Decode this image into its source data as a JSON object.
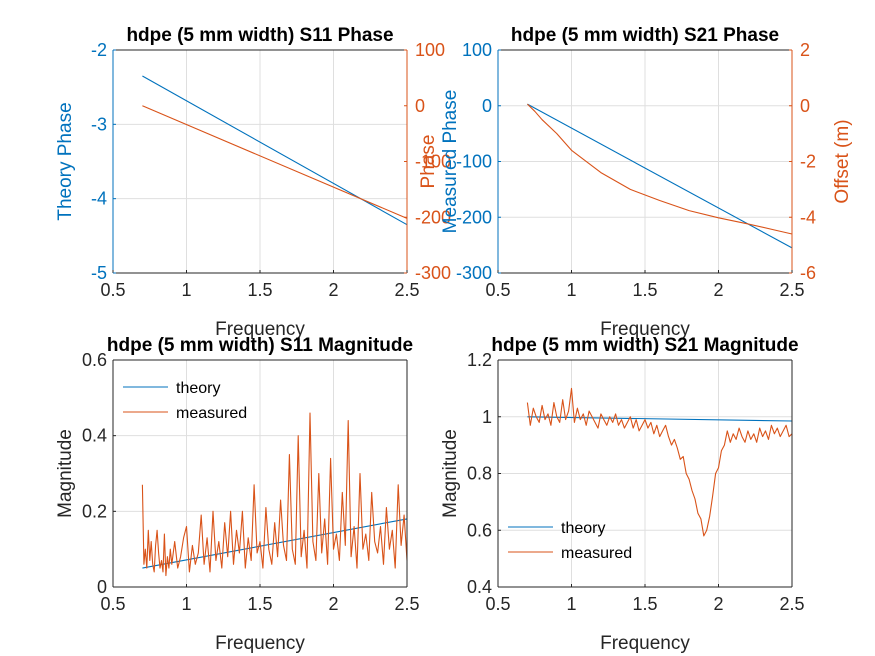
{
  "colors": {
    "blue": "#0072BD",
    "orange": "#D95319",
    "axis": "#262626",
    "grid": "#DFDFDF"
  },
  "chart_data": [
    {
      "id": "s11-phase",
      "type": "line",
      "title": "hdpe (5 mm width) S11 Phase",
      "xlabel": "Frequency",
      "ylabel_left": "Theory Phase",
      "ylabel_right": "Phase",
      "xlim": [
        0.5,
        2.5
      ],
      "ylim_left": [
        -5,
        -2
      ],
      "ylim_right": [
        -300,
        100
      ],
      "xticks": [
        "0.5",
        "1",
        "1.5",
        "2",
        "2.5"
      ],
      "yticks_left": [
        "-5",
        "-4",
        "-3",
        "-2"
      ],
      "yticks_right": [
        "-300",
        "-200",
        "-100",
        "0",
        "100"
      ],
      "grid": true,
      "series": [
        {
          "axis": "left",
          "color": "blue",
          "x": [
            0.7,
            2.5
          ],
          "y": [
            -2.35,
            -4.35
          ]
        },
        {
          "axis": "right",
          "color": "orange",
          "x": [
            0.7,
            2.5
          ],
          "y": [
            0,
            -202
          ]
        }
      ]
    },
    {
      "id": "s21-phase",
      "type": "line",
      "title": "hdpe (5 mm width) S21 Phase",
      "xlabel": "Frequency",
      "ylabel_left": "Measured Phase",
      "ylabel_right": "Offset (m)",
      "xlim": [
        0.5,
        2.5
      ],
      "ylim_left": [
        -300,
        100
      ],
      "ylim_right": [
        -6,
        2
      ],
      "xticks": [
        "0.5",
        "1",
        "1.5",
        "2",
        "2.5"
      ],
      "yticks_left": [
        "-300",
        "-200",
        "-100",
        "0",
        "100"
      ],
      "yticks_right": [
        "-6",
        "-4",
        "-2",
        "0",
        "2"
      ],
      "grid": true,
      "series": [
        {
          "axis": "left",
          "color": "blue",
          "x": [
            0.7,
            2.5
          ],
          "y": [
            3,
            -255
          ]
        },
        {
          "axis": "left",
          "color": "orange",
          "x": [
            0.7,
            0.75,
            0.8,
            0.9,
            1.0,
            1.2,
            1.4,
            1.6,
            1.8,
            2.0,
            2.2,
            2.4,
            2.5
          ],
          "y": [
            3,
            -10,
            -25,
            -50,
            -80,
            -120,
            -150,
            -170,
            -188,
            -201,
            -212,
            -224,
            -230
          ]
        }
      ]
    },
    {
      "id": "s11-magnitude",
      "type": "line",
      "title": "hdpe (5 mm width) S11 Magnitude",
      "xlabel": "Frequency",
      "ylabel": "Magnitude",
      "xlim": [
        0.5,
        2.5
      ],
      "ylim": [
        0,
        0.6
      ],
      "xticks": [
        "0.5",
        "1",
        "1.5",
        "2",
        "2.5"
      ],
      "yticks": [
        "0",
        "0.2",
        "0.4",
        "0.6"
      ],
      "grid": true,
      "legend": [
        "theory",
        "measured"
      ],
      "legend_position": "top-left",
      "series": [
        {
          "name": "theory",
          "color": "blue",
          "x": [
            0.7,
            2.5
          ],
          "y": [
            0.05,
            0.18
          ]
        },
        {
          "name": "measured",
          "color": "orange",
          "x": [
            0.7,
            0.71,
            0.72,
            0.73,
            0.74,
            0.75,
            0.76,
            0.77,
            0.78,
            0.79,
            0.8,
            0.81,
            0.82,
            0.83,
            0.84,
            0.85,
            0.86,
            0.87,
            0.88,
            0.89,
            0.9,
            0.92,
            0.94,
            0.96,
            0.98,
            1.0,
            1.02,
            1.04,
            1.06,
            1.08,
            1.1,
            1.12,
            1.14,
            1.16,
            1.18,
            1.2,
            1.22,
            1.24,
            1.26,
            1.28,
            1.3,
            1.32,
            1.34,
            1.36,
            1.38,
            1.4,
            1.42,
            1.44,
            1.46,
            1.48,
            1.5,
            1.52,
            1.54,
            1.56,
            1.58,
            1.6,
            1.62,
            1.64,
            1.66,
            1.68,
            1.7,
            1.72,
            1.74,
            1.76,
            1.78,
            1.8,
            1.82,
            1.84,
            1.86,
            1.88,
            1.9,
            1.92,
            1.94,
            1.96,
            1.98,
            2.0,
            2.02,
            2.04,
            2.06,
            2.08,
            2.1,
            2.12,
            2.14,
            2.16,
            2.18,
            2.2,
            2.22,
            2.24,
            2.26,
            2.28,
            2.3,
            2.32,
            2.34,
            2.36,
            2.38,
            2.4,
            2.42,
            2.44,
            2.46,
            2.48,
            2.5
          ],
          "y": [
            0.27,
            0.06,
            0.1,
            0.05,
            0.15,
            0.07,
            0.12,
            0.06,
            0.04,
            0.11,
            0.15,
            0.09,
            0.05,
            0.07,
            0.04,
            0.14,
            0.03,
            0.08,
            0.05,
            0.1,
            0.06,
            0.12,
            0.05,
            0.08,
            0.13,
            0.16,
            0.04,
            0.11,
            0.06,
            0.09,
            0.19,
            0.06,
            0.13,
            0.04,
            0.2,
            0.07,
            0.12,
            0.05,
            0.17,
            0.08,
            0.2,
            0.06,
            0.15,
            0.09,
            0.2,
            0.05,
            0.13,
            0.07,
            0.27,
            0.09,
            0.12,
            0.05,
            0.21,
            0.1,
            0.06,
            0.17,
            0.08,
            0.23,
            0.11,
            0.07,
            0.35,
            0.1,
            0.06,
            0.4,
            0.08,
            0.15,
            0.05,
            0.46,
            0.12,
            0.07,
            0.3,
            0.09,
            0.18,
            0.06,
            0.34,
            0.1,
            0.14,
            0.07,
            0.25,
            0.11,
            0.44,
            0.08,
            0.16,
            0.05,
            0.3,
            0.1,
            0.14,
            0.07,
            0.25,
            0.12,
            0.09,
            0.16,
            0.06,
            0.21,
            0.1,
            0.15,
            0.05,
            0.27,
            0.11,
            0.19,
            0.07
          ]
        }
      ]
    },
    {
      "id": "s21-magnitude",
      "type": "line",
      "title": "hdpe (5 mm width) S21 Magnitude",
      "xlabel": "Frequency",
      "ylabel": "Magnitude",
      "xlim": [
        0.5,
        2.5
      ],
      "ylim": [
        0.4,
        1.2
      ],
      "xticks": [
        "0.5",
        "1",
        "1.5",
        "2",
        "2.5"
      ],
      "yticks": [
        "0.4",
        "0.6",
        "0.8",
        "1",
        "1.2"
      ],
      "grid": true,
      "legend": [
        "theory",
        "measured"
      ],
      "legend_position": "bottom-left",
      "series": [
        {
          "name": "theory",
          "color": "blue",
          "x": [
            0.7,
            2.5
          ],
          "y": [
            1.0,
            0.985
          ]
        },
        {
          "name": "measured",
          "color": "orange",
          "x": [
            0.7,
            0.72,
            0.74,
            0.76,
            0.78,
            0.8,
            0.82,
            0.84,
            0.86,
            0.88,
            0.9,
            0.92,
            0.94,
            0.96,
            0.98,
            1.0,
            1.02,
            1.04,
            1.06,
            1.08,
            1.1,
            1.12,
            1.14,
            1.16,
            1.18,
            1.2,
            1.22,
            1.24,
            1.26,
            1.28,
            1.3,
            1.32,
            1.34,
            1.36,
            1.38,
            1.4,
            1.42,
            1.44,
            1.46,
            1.48,
            1.5,
            1.52,
            1.54,
            1.56,
            1.58,
            1.6,
            1.62,
            1.64,
            1.66,
            1.68,
            1.7,
            1.72,
            1.74,
            1.76,
            1.78,
            1.8,
            1.82,
            1.84,
            1.86,
            1.88,
            1.9,
            1.92,
            1.94,
            1.96,
            1.98,
            2.0,
            2.02,
            2.04,
            2.06,
            2.08,
            2.1,
            2.12,
            2.14,
            2.16,
            2.18,
            2.2,
            2.22,
            2.24,
            2.26,
            2.28,
            2.3,
            2.32,
            2.34,
            2.36,
            2.38,
            2.4,
            2.42,
            2.44,
            2.46,
            2.48,
            2.5
          ],
          "y": [
            1.05,
            0.97,
            1.03,
            1.0,
            0.98,
            1.04,
            0.99,
            1.01,
            0.97,
            1.05,
            1.0,
            0.98,
            1.06,
            0.99,
            1.02,
            1.1,
            0.98,
            1.03,
            0.99,
            1.01,
            0.97,
            1.02,
            1.0,
            0.98,
            0.96,
            1.01,
            0.99,
            0.97,
            1.0,
            0.98,
            1.01,
            0.97,
            0.99,
            0.96,
            0.98,
            1.0,
            0.96,
            0.99,
            0.95,
            0.97,
            0.99,
            0.96,
            0.98,
            0.94,
            0.97,
            0.93,
            0.95,
            0.97,
            0.93,
            0.9,
            0.92,
            0.89,
            0.85,
            0.86,
            0.8,
            0.78,
            0.74,
            0.71,
            0.66,
            0.64,
            0.58,
            0.6,
            0.65,
            0.72,
            0.8,
            0.82,
            0.88,
            0.9,
            0.95,
            0.91,
            0.94,
            0.92,
            0.96,
            0.93,
            0.91,
            0.95,
            0.92,
            0.94,
            0.91,
            0.96,
            0.93,
            0.95,
            0.92,
            0.97,
            0.94,
            0.96,
            0.93,
            0.95,
            0.97,
            0.93,
            0.94
          ]
        }
      ]
    }
  ]
}
